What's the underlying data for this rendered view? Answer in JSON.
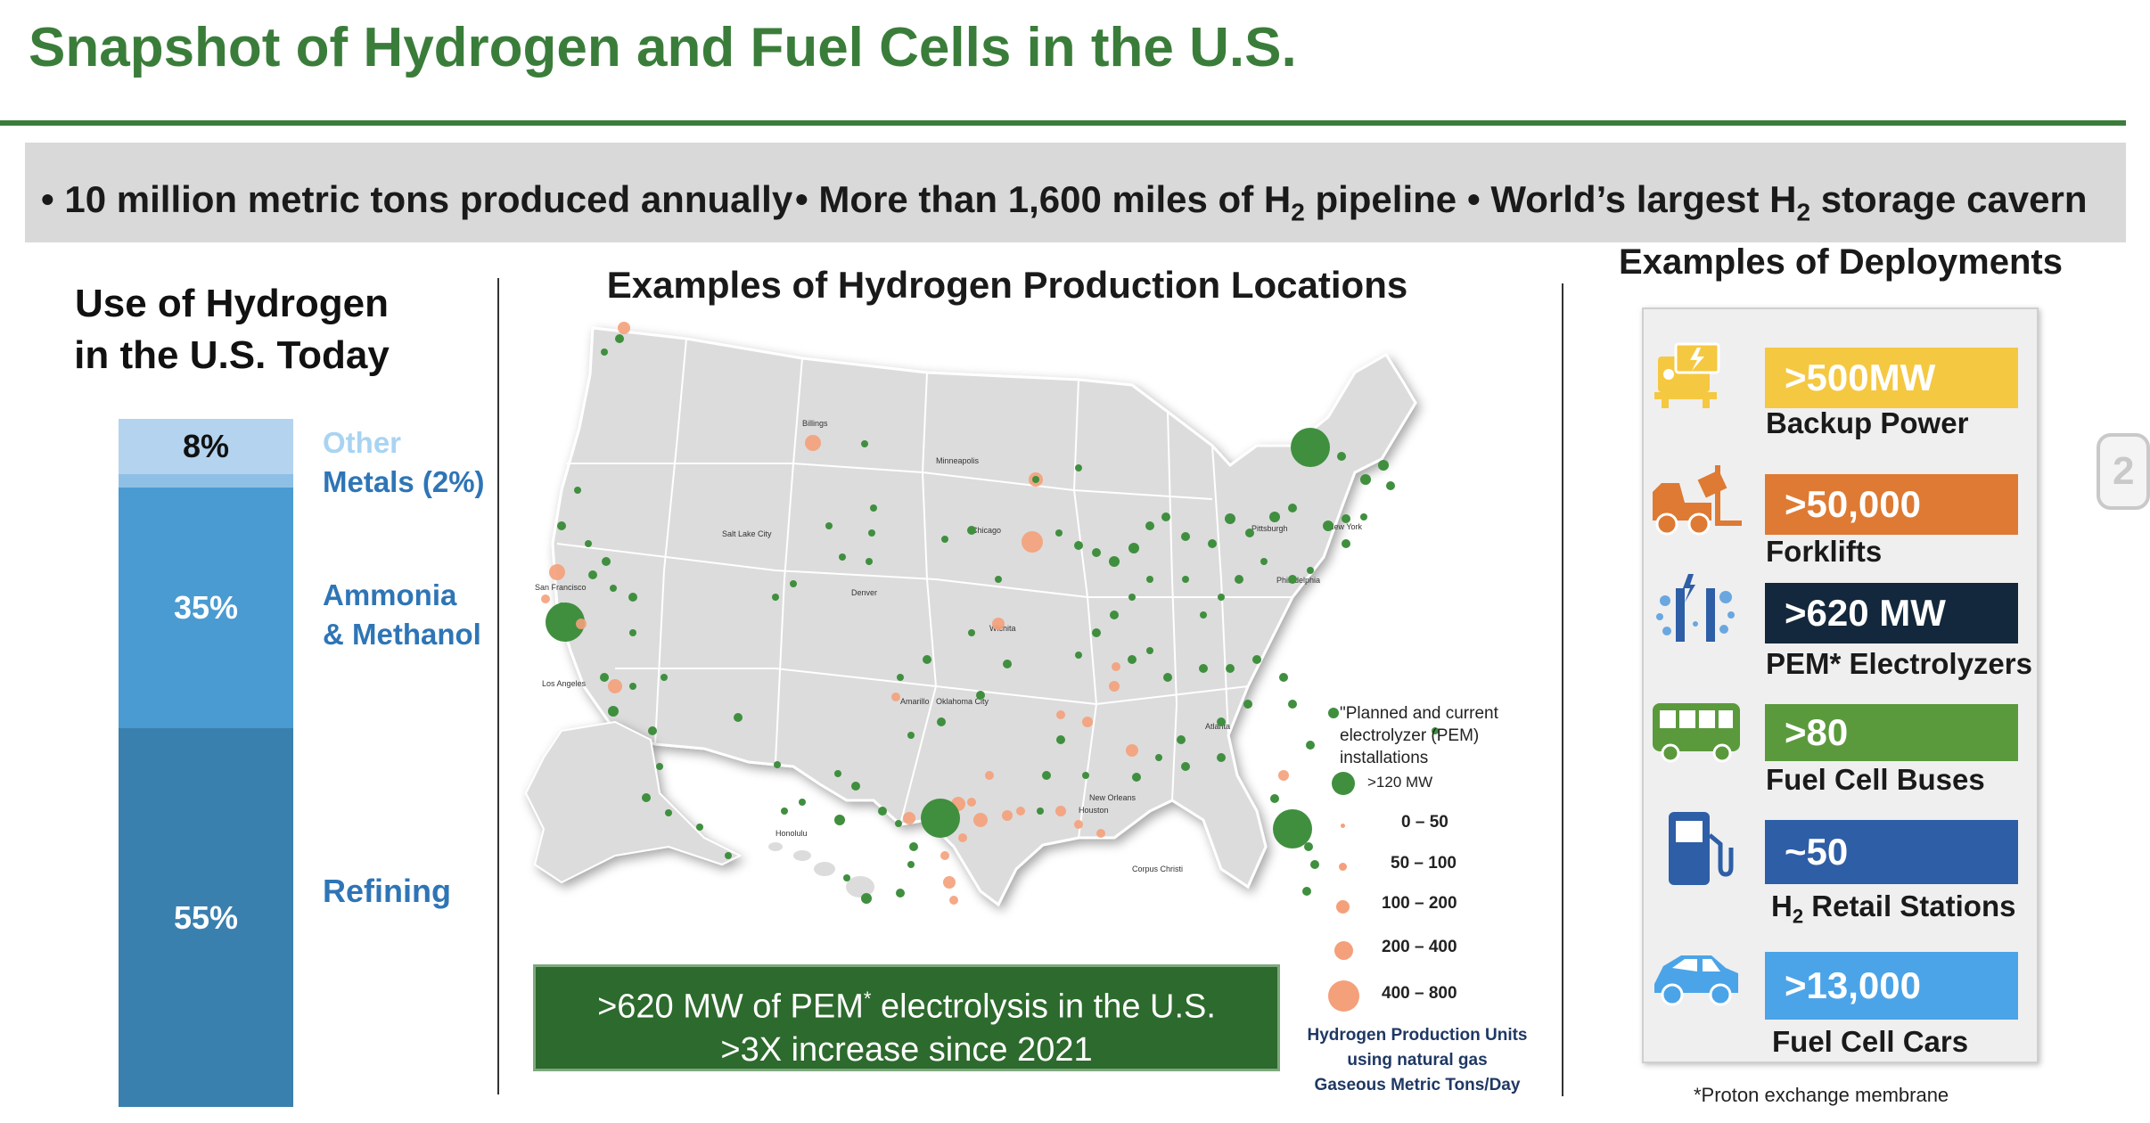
{
  "header": {
    "title": "Snapshot of Hydrogen and Fuel Cells in the U.S."
  },
  "facts": [
    {
      "prefix": "• 10 million metric tons produced annually",
      "sub": "",
      "suffix": ""
    },
    {
      "prefix": "• More than 1,600 miles of H",
      "sub": "2",
      "suffix": " pipeline"
    },
    {
      "prefix": "• World’s largest H",
      "sub": "2",
      "suffix": " storage cavern"
    }
  ],
  "use": {
    "title_line1": "Use of Hydrogen",
    "title_line2": "in the U.S. Today",
    "segments": [
      {
        "pct_label": "8%",
        "share": 0.08,
        "color": "#b4d3ee",
        "text_color": "#111111"
      },
      {
        "pct_label": "",
        "share": 0.02,
        "color": "#8ec0e6",
        "text_color": "#111111"
      },
      {
        "pct_label": "35%",
        "share": 0.35,
        "color": "#4a9bd1",
        "text_color": "#ffffff"
      },
      {
        "pct_label": "55%",
        "share": 0.55,
        "color": "#3a80ae",
        "text_color": "#ffffff"
      }
    ],
    "labels": {
      "other": "Other",
      "metals": "Metals (2%)",
      "ammonia_1": "Ammonia",
      "ammonia_2": "& Methanol",
      "refining": "Refining"
    },
    "label_colors": {
      "other": "#a8d4f2",
      "main": "#2e75b6"
    }
  },
  "map": {
    "title": "Examples of Hydrogen Production Locations",
    "cities": [
      "Billings",
      "Minneapolis",
      "Salt Lake City",
      "Chicago",
      "Pittsburgh",
      "New York",
      "San Francisco",
      "Denver",
      "Philadelphia",
      "Wichita",
      "Los Angeles",
      "Amarillo",
      "Oklahoma City",
      "Atlanta",
      "New Orleans",
      "Honolulu",
      "Houston",
      "Corpus Christi"
    ],
    "pem_box_line1": ">620 MW of PEM",
    "pem_box_sup": "*",
    "pem_box_line1_end": " electrolysis in the U.S.",
    "pem_box_line2": ">3X increase since 2021",
    "legend": {
      "title": "\"Planned and current electrolyzer (PEM) installations",
      "sizes": [
        ">120 MW",
        "0 – 50",
        "50 – 100",
        "100 – 200",
        "200 – 400",
        "400 – 800"
      ],
      "pem_color": "#3f8f3f",
      "gas_color": "#f4a07a"
    },
    "production_units": [
      "Hydrogen Production Units",
      "using natural gas",
      "Gaseous Metric Tons/Day"
    ]
  },
  "deployments": {
    "title": "Examples of Deployments",
    "items": [
      {
        "value": ">500MW",
        "label": "Backup Power",
        "label_sub": "",
        "label_end": "",
        "color": "#f5c842",
        "icon": "generator-icon"
      },
      {
        "value": ">50,000",
        "label": "Forklifts",
        "label_sub": "",
        "label_end": "",
        "color": "#de7a33",
        "icon": "forklift-icon"
      },
      {
        "value": ">620 MW",
        "label": "PEM* Electrolyzers",
        "label_sub": "",
        "label_end": "",
        "color": "#13283c",
        "icon": "electrolyzer-icon"
      },
      {
        "value": ">80",
        "label": "Fuel Cell Buses",
        "label_sub": "",
        "label_end": "",
        "color": "#5b9a3c",
        "icon": "bus-icon"
      },
      {
        "value": "~50",
        "label": "H",
        "label_sub": "2",
        "label_end": " Retail Stations",
        "color": "#2e5ea6",
        "icon": "fuel-pump-icon"
      },
      {
        "value": ">13,000",
        "label": "Fuel Cell Cars",
        "label_sub": "",
        "label_end": "",
        "color": "#4ba4e8",
        "icon": "car-icon"
      }
    ],
    "footnote": "*Proton exchange membrane"
  },
  "edge_tab": {
    "glyph": "2"
  }
}
